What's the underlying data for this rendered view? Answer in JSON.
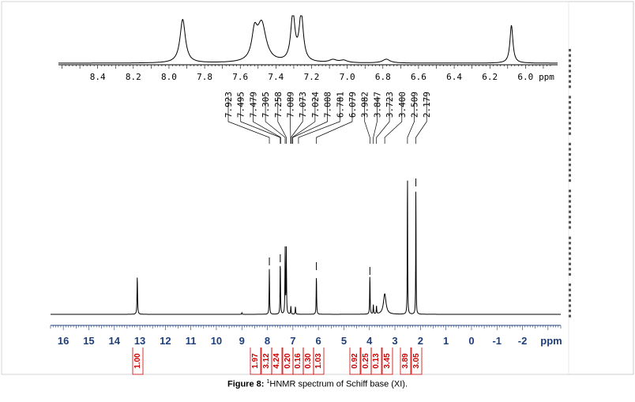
{
  "caption": {
    "label": "Figure 8:",
    "sup": "1",
    "text": "HNMR spectrum of Schiff base (XI)."
  },
  "colors": {
    "spectrum": "#000000",
    "frame": "#cccccc",
    "axis_labels": "#1f3f7a",
    "integration": "#cc0000"
  },
  "chart_data": [
    {
      "name": "expanded_region",
      "type": "line",
      "xlabel": "ppm",
      "xlim": [
        8.62,
        5.82
      ],
      "tick_labels": [
        "8.4",
        "8.2",
        "8.0",
        "7.8",
        "7.6",
        "7.4",
        "7.2",
        "7.0",
        "6.8",
        "6.6",
        "6.4",
        "6.2",
        "6.0"
      ],
      "peaks": [
        {
          "ppm": 7.923,
          "height": 0.92
        },
        {
          "ppm": 7.48,
          "height": 0.8
        },
        {
          "ppm": 7.305,
          "height": 1.0
        },
        {
          "ppm": 7.258,
          "height": 1.0
        },
        {
          "ppm": 7.08,
          "height": 0.06
        },
        {
          "ppm": 7.02,
          "height": 0.05
        },
        {
          "ppm": 6.781,
          "height": 0.08
        },
        {
          "ppm": 6.079,
          "height": 0.8
        }
      ]
    },
    {
      "name": "full_spectrum",
      "type": "line",
      "xlabel": "ppm",
      "xlim": [
        16.5,
        -3.5
      ],
      "tick_labels": [
        "16",
        "15",
        "14",
        "13",
        "12",
        "11",
        "10",
        "9",
        "8",
        "7",
        "6",
        "5",
        "4",
        "3",
        "2",
        "1",
        "0",
        "-1",
        "-2"
      ],
      "peaks": [
        {
          "ppm": 13.1,
          "height": 0.24
        },
        {
          "ppm": 7.923,
          "height": 0.29
        },
        {
          "ppm": 7.495,
          "height": 0.34
        },
        {
          "ppm": 7.305,
          "height": 0.39
        },
        {
          "ppm": 7.258,
          "height": 0.39
        },
        {
          "ppm": 7.08,
          "height": 0.05
        },
        {
          "ppm": 6.9,
          "height": 0.05
        },
        {
          "ppm": 6.079,
          "height": 0.25
        },
        {
          "ppm": 3.982,
          "height": 0.25
        },
        {
          "ppm": 3.847,
          "height": 0.06
        },
        {
          "ppm": 3.723,
          "height": 0.05
        },
        {
          "ppm": 3.4,
          "height": 0.13
        },
        {
          "ppm": 2.509,
          "height": 0.95
        },
        {
          "ppm": 2.179,
          "height": 0.83
        },
        {
          "ppm": 9.0,
          "height": 0.01
        }
      ],
      "peak_labels": [
        "7.923",
        "7.495",
        "7.479",
        "7.305",
        "7.258",
        "7.089",
        "7.073",
        "7.024",
        "7.008",
        "6.781",
        "6.079",
        "3.982",
        "3.847",
        "3.723",
        "3.400",
        "2.509",
        "2.179"
      ],
      "integrations": [
        {
          "ppm": 13.1,
          "value": "1.00"
        },
        {
          "ppm": 7.923,
          "value": "1.97"
        },
        {
          "ppm": 7.6,
          "value": "3.12"
        },
        {
          "ppm": 7.3,
          "value": "4.24"
        },
        {
          "ppm": 7.05,
          "value": "0.20"
        },
        {
          "ppm": 6.85,
          "value": "0.16"
        },
        {
          "ppm": 6.55,
          "value": "0.30"
        },
        {
          "ppm": 6.1,
          "value": "1.03"
        },
        {
          "ppm": 4.0,
          "value": "0.92"
        },
        {
          "ppm": 3.8,
          "value": "0.25"
        },
        {
          "ppm": 3.5,
          "value": "0.13"
        },
        {
          "ppm": 3.1,
          "value": "3.45"
        },
        {
          "ppm": 2.7,
          "value": "3.89"
        },
        {
          "ppm": 2.3,
          "value": "3.05"
        }
      ]
    }
  ]
}
